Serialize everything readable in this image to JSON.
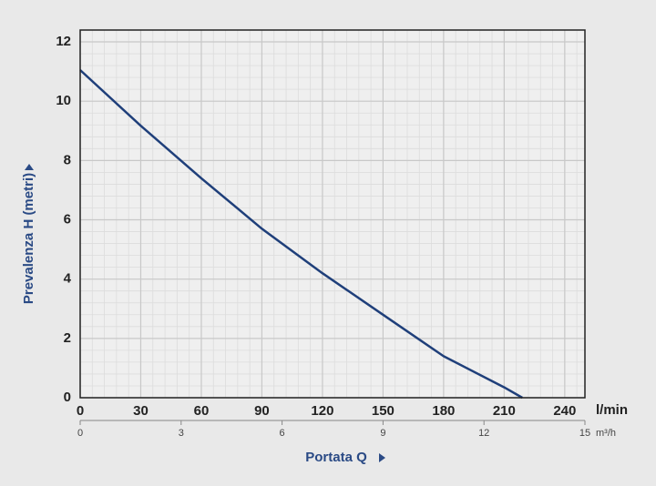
{
  "chart_data": {
    "type": "line",
    "x_label": "Portata Q",
    "y_label": "Prevalenza H (metri)",
    "x_unit": "l/min",
    "x2_unit": "m³/h",
    "x": [
      0,
      30,
      60,
      90,
      120,
      150,
      180,
      210,
      219
    ],
    "series": [
      {
        "color": "#1f3f7a",
        "values": [
          11.05,
          9.17,
          7.4,
          5.7,
          4.2,
          2.8,
          1.4,
          0.35,
          0
        ]
      }
    ],
    "xlim": [
      0,
      250
    ],
    "xticks": [
      0,
      30,
      60,
      90,
      120,
      150,
      180,
      210,
      240
    ],
    "x2lim": [
      0,
      15
    ],
    "x2ticks": [
      0,
      3,
      6,
      9,
      12,
      15
    ],
    "ylim": [
      0,
      12.4
    ],
    "yticks": [
      0,
      2,
      4,
      6,
      8,
      10,
      12
    ],
    "grid": true
  }
}
